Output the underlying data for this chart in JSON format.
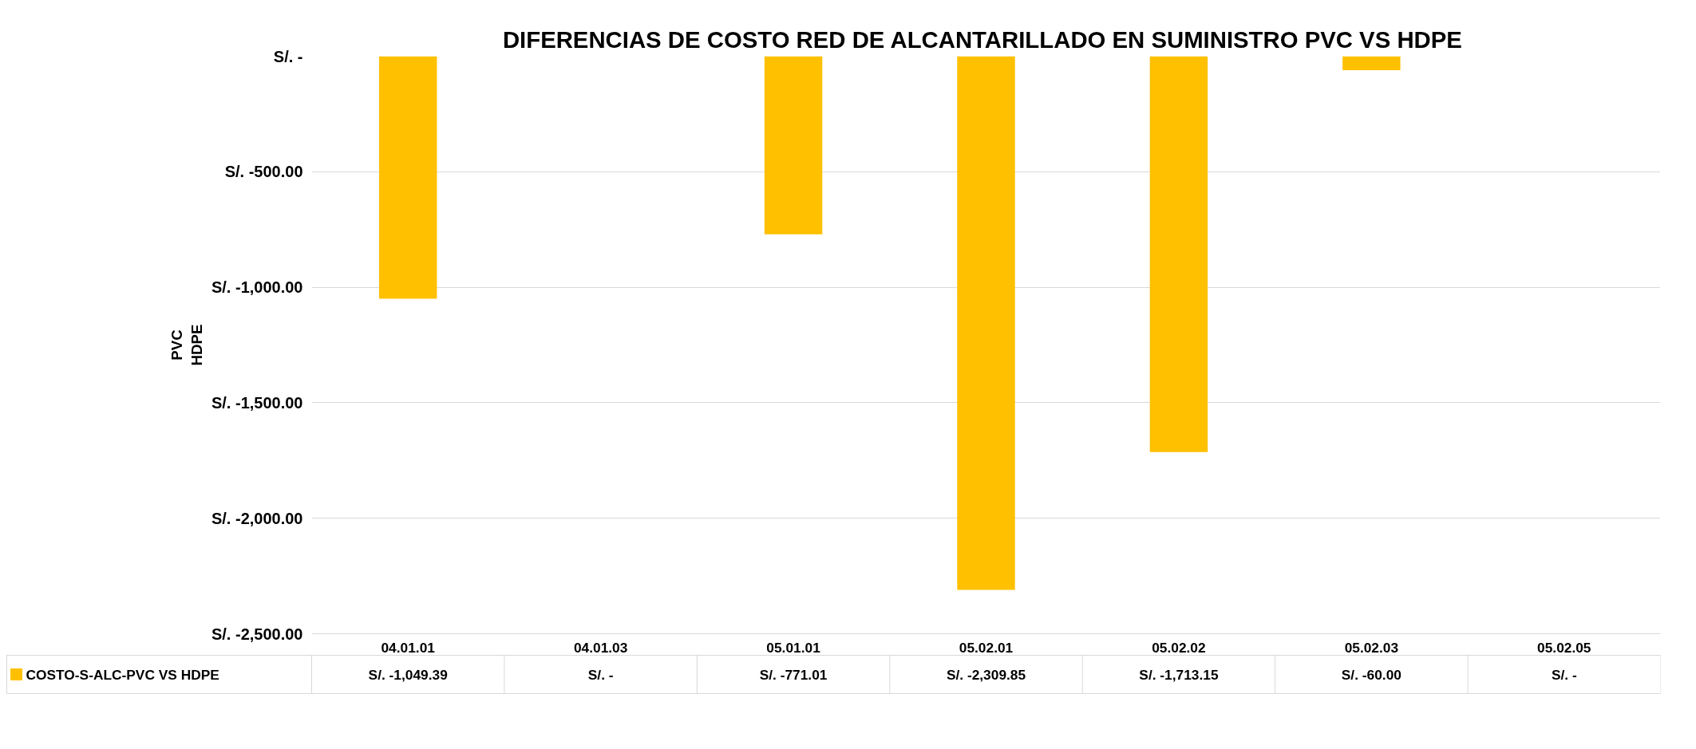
{
  "chart_data": {
    "type": "bar",
    "title": "DIFERENCIAS DE COSTO RED DE ALCANTARILLADO  EN SUMINISTRO PVC VS HDPE",
    "ylabel": "PVC HDPE",
    "categories": [
      "04.01.01",
      "04.01.03",
      "05.01.01",
      "05.02.01",
      "05.02.02",
      "05.02.03",
      "05.02.05"
    ],
    "series": [
      {
        "name": "COSTO-S-ALC-PVC VS HDPE",
        "color": "#ffc000",
        "values": [
          -1049.39,
          0,
          -771.01,
          -2309.85,
          -1713.15,
          -60.0,
          0
        ],
        "value_labels": [
          "S/. -1,049.39",
          "S/. -",
          "S/. -771.01",
          "S/. -2,309.85",
          "S/. -1,713.15",
          "S/. -60.00",
          "S/. -"
        ]
      }
    ],
    "ylim": [
      -2500,
      0
    ],
    "yticks": [
      {
        "value": -2500,
        "label": "S/. -2,500.00"
      },
      {
        "value": -2000,
        "label": "S/. -2,000.00"
      },
      {
        "value": -1500,
        "label": "S/. -1,500.00"
      },
      {
        "value": -1000,
        "label": "S/. -1,000.00"
      },
      {
        "value": -500,
        "label": "S/. -500.00"
      },
      {
        "value": 0,
        "label": "S/. -"
      }
    ],
    "grid": "y",
    "legend": "bottom"
  }
}
